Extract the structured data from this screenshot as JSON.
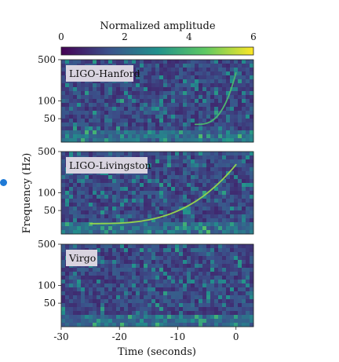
{
  "chart_data": {
    "type": "heatmap",
    "title": "",
    "colorbar": {
      "label": "Normalized amplitude",
      "range": [
        0,
        6
      ],
      "ticks": [
        "0",
        "2",
        "4",
        "6"
      ],
      "colormap": "viridis"
    },
    "xlabel": "Time (seconds)",
    "ylabel": "Frequency (Hz)",
    "xlim": [
      -30,
      3
    ],
    "ylim": [
      20,
      500
    ],
    "yscale": "log",
    "x_ticks": [
      "-30",
      "-20",
      "-10",
      "0"
    ],
    "y_ticks": [
      "50",
      "100",
      "500"
    ],
    "panels": [
      {
        "name": "LIGO-Hanford",
        "chirp": {
          "visible": true,
          "start_time": -7,
          "end_time": 0,
          "start_freq": 40,
          "end_freq": 300,
          "peak_amplitude": 4
        }
      },
      {
        "name": "LIGO-Livingston",
        "chirp": {
          "visible": true,
          "start_time": -25,
          "end_time": 0,
          "start_freq": 30,
          "end_freq": 300,
          "peak_amplitude": 5
        }
      },
      {
        "name": "Virgo",
        "chirp": {
          "visible": false
        }
      }
    ]
  },
  "colors": {
    "background": "#ffffff",
    "label_box": "#d9d4e0",
    "colormap_stops": [
      "#440154",
      "#3b528b",
      "#21918c",
      "#5ec962",
      "#fde725"
    ]
  }
}
